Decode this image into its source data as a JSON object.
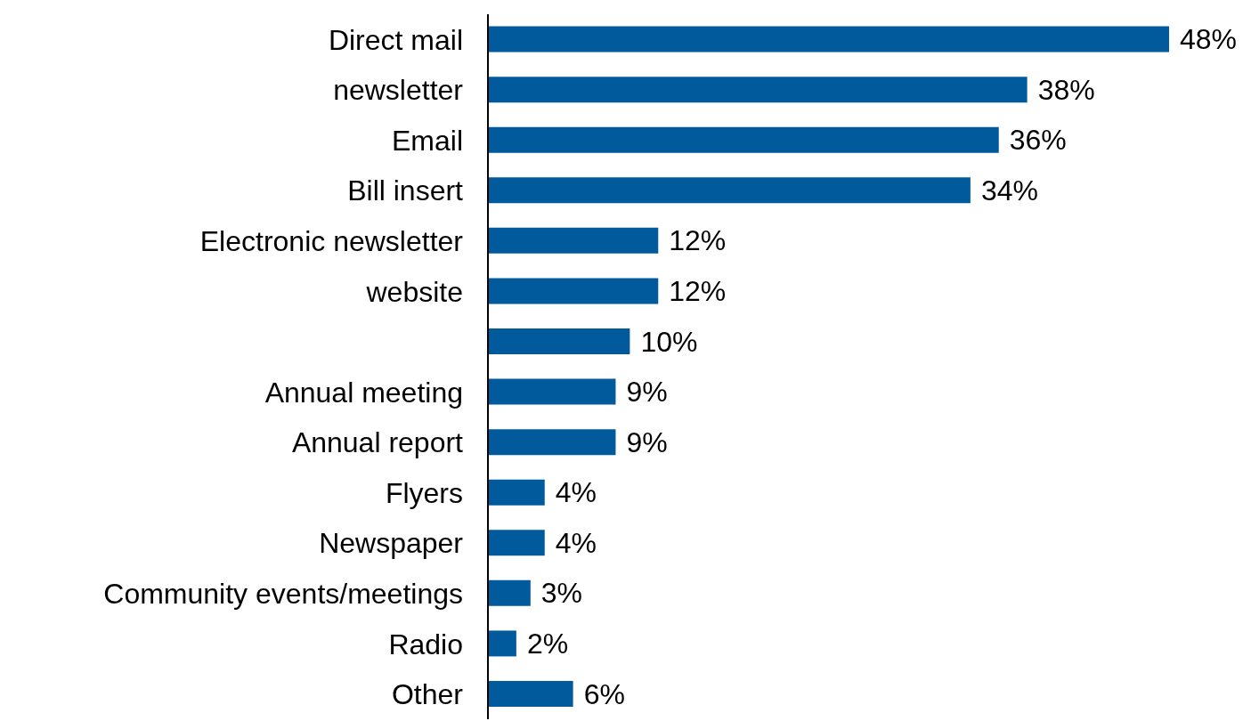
{
  "chart_data": {
    "type": "bar",
    "orientation": "horizontal",
    "categories": [
      "Direct mail",
      "newsletter",
      "Email",
      "Bill insert",
      "Electronic newsletter",
      "website",
      null,
      "Annual meeting",
      "Annual report",
      "Flyers",
      "Newspaper",
      "Community events/meetings",
      "Radio",
      "Other"
    ],
    "values": [
      48,
      38,
      36,
      34,
      12,
      12,
      10,
      9,
      9,
      4,
      4,
      3,
      2,
      6
    ],
    "value_labels": [
      "48%",
      "38%",
      "36%",
      "34%",
      "12%",
      "12%",
      "10%",
      "9%",
      "9%",
      "4%",
      "4%",
      "3%",
      "2%",
      "6%"
    ],
    "color": "#005a9c",
    "grid": false,
    "legend": false
  }
}
